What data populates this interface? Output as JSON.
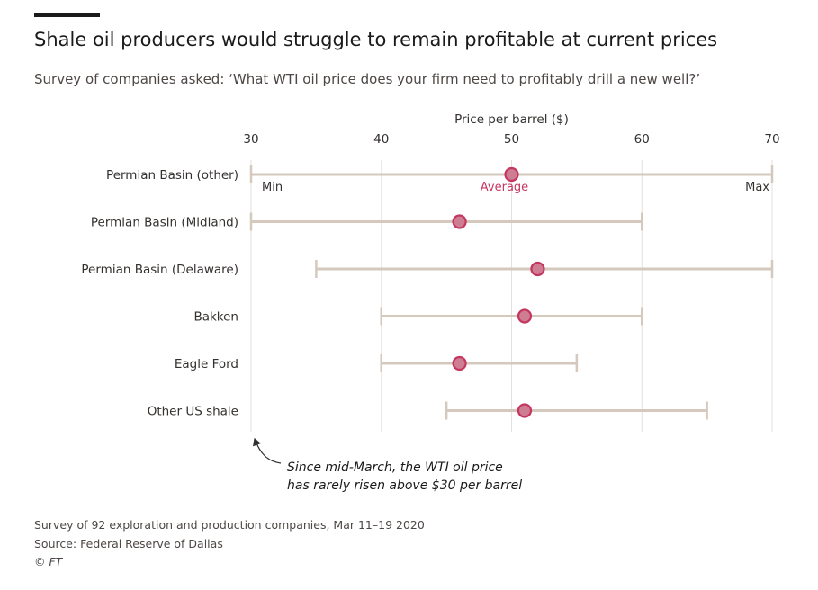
{
  "title": "Shale oil producers would struggle to remain profitable at current prices",
  "subtitle": "Survey of companies asked: ‘What WTI oil price does your firm need to profitably drill a new well?’",
  "footer": {
    "note": "Survey of 92 exploration and production companies, Mar 11–19 2020",
    "source": "Source: Federal Reserve of Dallas",
    "credit": "© FT"
  },
  "colors": {
    "range_bar": "#d4c9bc",
    "average_marker": "#c4365f",
    "average_fill": "#cf7d92",
    "grid": "#e6e0da",
    "text": "#33302e"
  },
  "chart_data": {
    "type": "range-dot",
    "xlabel": "Price per barrel ($)",
    "xlim": [
      30,
      70
    ],
    "xticks": [
      30,
      40,
      50,
      60,
      70
    ],
    "grid": true,
    "series_labels": {
      "min": "Min",
      "average": "Average",
      "max": "Max"
    },
    "categories": [
      "Permian Basin (other)",
      "Permian Basin (Midland)",
      "Permian Basin (Delaware)",
      "Bakken",
      "Eagle Ford",
      "Other US shale"
    ],
    "min": [
      30,
      30,
      35,
      40,
      40,
      45
    ],
    "average": [
      50,
      46,
      52,
      51,
      46,
      51
    ],
    "max": [
      70,
      60,
      70,
      60,
      55,
      65
    ],
    "annotation": {
      "lines": [
        "Since mid-March, the WTI oil price",
        "has rarely risen above $30 per barrel"
      ],
      "points_to_x": 30
    }
  }
}
